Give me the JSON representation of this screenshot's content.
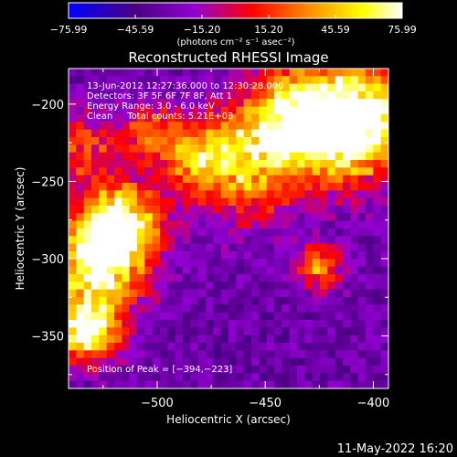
{
  "chart_data": {
    "type": "heatmap",
    "title": "Reconstructed RHESSI Image",
    "xlabel": "Heliocentric X (arcsec)",
    "ylabel": "Heliocentric Y (arcsec)",
    "xlim": [
      -541,
      -393
    ],
    "ylim": [
      -384,
      -177
    ],
    "x_ticks": [
      -500,
      -450,
      -400
    ],
    "x_tick_labels": [
      "−500",
      "−450",
      "−400"
    ],
    "y_ticks": [
      -200,
      -250,
      -300,
      -350
    ],
    "y_tick_labels": [
      "−200",
      "−250",
      "−300",
      "−350"
    ],
    "colorbar": {
      "range": [
        -75.99,
        75.99
      ],
      "tick_labels": [
        "−75.99",
        "−45.59",
        "−15.20",
        "15.20",
        "45.59",
        "75.99"
      ],
      "unit_label": "(photons cm⁻² s⁻¹ asec⁻²)",
      "colors": [
        "#0000ff",
        "#4b0082",
        "#9400d3",
        "#ff0000",
        "#ff8c00",
        "#ffff00",
        "#ffffff"
      ]
    },
    "annotations": [
      "13-Jun-2012 12:27:36.000 to 12:30:28.000",
      "Detectors: 3F 5F 6F 7F 8F, Att 1",
      "Energy Range: 3.0 - 6.0 keV",
      "Clean     Total counts: 5.21E+03"
    ],
    "peak_label": "Position of Peak = [−394,−223]",
    "peak": [
      -394,
      -223
    ],
    "grid": false
  },
  "footer": {
    "timestamp": "11-May-2022 16:20"
  }
}
